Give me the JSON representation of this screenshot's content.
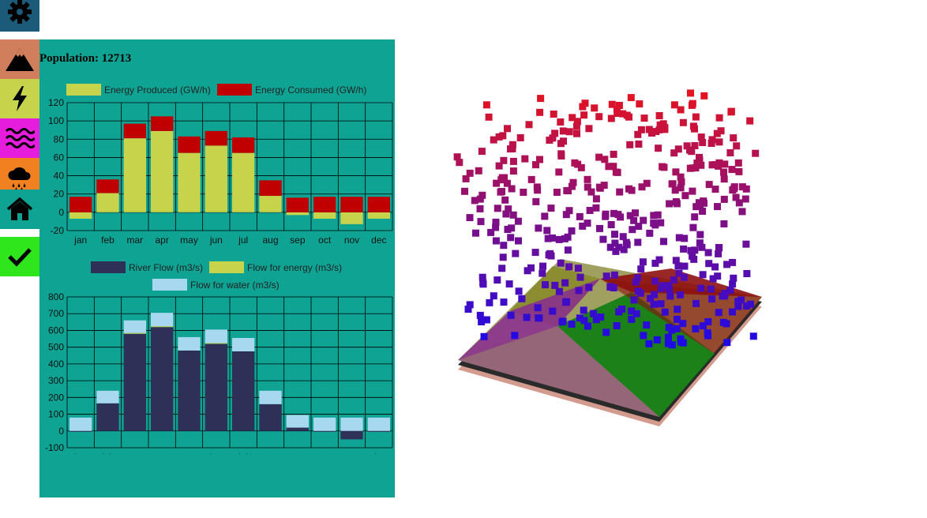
{
  "sidebar": {
    "items": [
      {
        "name": "gear-icon",
        "color": "#1b5a78"
      },
      {
        "name": "mountain-icon",
        "color": "#d07e5b"
      },
      {
        "name": "lightning-icon",
        "color": "#c8d34c"
      },
      {
        "name": "waves-icon",
        "color": "#e61ddc"
      },
      {
        "name": "rain-cloud-icon",
        "color": "#f08020"
      },
      {
        "name": "home-icon",
        "color": "#0fa394"
      },
      {
        "name": "checkmark-icon",
        "color": "#2fe51c"
      }
    ]
  },
  "population": {
    "label": "Population:",
    "value": "12713"
  },
  "colors": {
    "panel": "#0fa394",
    "energy_produced": "#c8d34c",
    "energy_consumed": "#c00000",
    "river_flow": "#2e3058",
    "flow_energy": "#c8d34c",
    "flow_water": "#a8d8f0"
  },
  "chart_data": [
    {
      "type": "bar",
      "stacked": true,
      "categories": [
        "jan",
        "feb",
        "mar",
        "apr",
        "may",
        "jun",
        "jul",
        "aug",
        "sep",
        "oct",
        "nov",
        "dec"
      ],
      "series": [
        {
          "name": "Energy Produced (GW/h)",
          "values": [
            -7,
            21,
            81,
            89,
            65,
            73,
            65,
            18,
            -3,
            -7,
            -13,
            -7
          ]
        },
        {
          "name": "Energy Consumed (GW/h)",
          "values": [
            17,
            15,
            16,
            16,
            18,
            16,
            17,
            17,
            16,
            17,
            17,
            17
          ]
        }
      ],
      "ylim": [
        -20,
        120
      ],
      "yticks": [
        "-20",
        "0",
        "20",
        "40",
        "60",
        "80",
        "100",
        "120"
      ],
      "grid": true,
      "legend": "top"
    },
    {
      "type": "bar",
      "stacked": true,
      "categories": [
        "jan",
        "feb",
        "mar",
        "apr",
        "may",
        "jun",
        "jul",
        "aug",
        "sep",
        "oct",
        "nov",
        "dec"
      ],
      "series": [
        {
          "name": "River Flow (m3/s)",
          "values": [
            -5,
            165,
            580,
            620,
            480,
            520,
            475,
            160,
            20,
            -5,
            -50,
            -5
          ]
        },
        {
          "name": "Flow for energy (m3/s)",
          "values": [
            0,
            0,
            5,
            5,
            0,
            5,
            0,
            0,
            0,
            0,
            0,
            0
          ]
        },
        {
          "name": "Flow for water (m3/s)",
          "values": [
            80,
            75,
            75,
            80,
            80,
            80,
            80,
            80,
            75,
            80,
            80,
            80
          ]
        }
      ],
      "ylim": [
        -100,
        800
      ],
      "yticks": [
        "-100",
        "0",
        "100",
        "200",
        "300",
        "400",
        "500",
        "600",
        "700",
        "800"
      ],
      "grid": true,
      "legend": "top"
    }
  ]
}
